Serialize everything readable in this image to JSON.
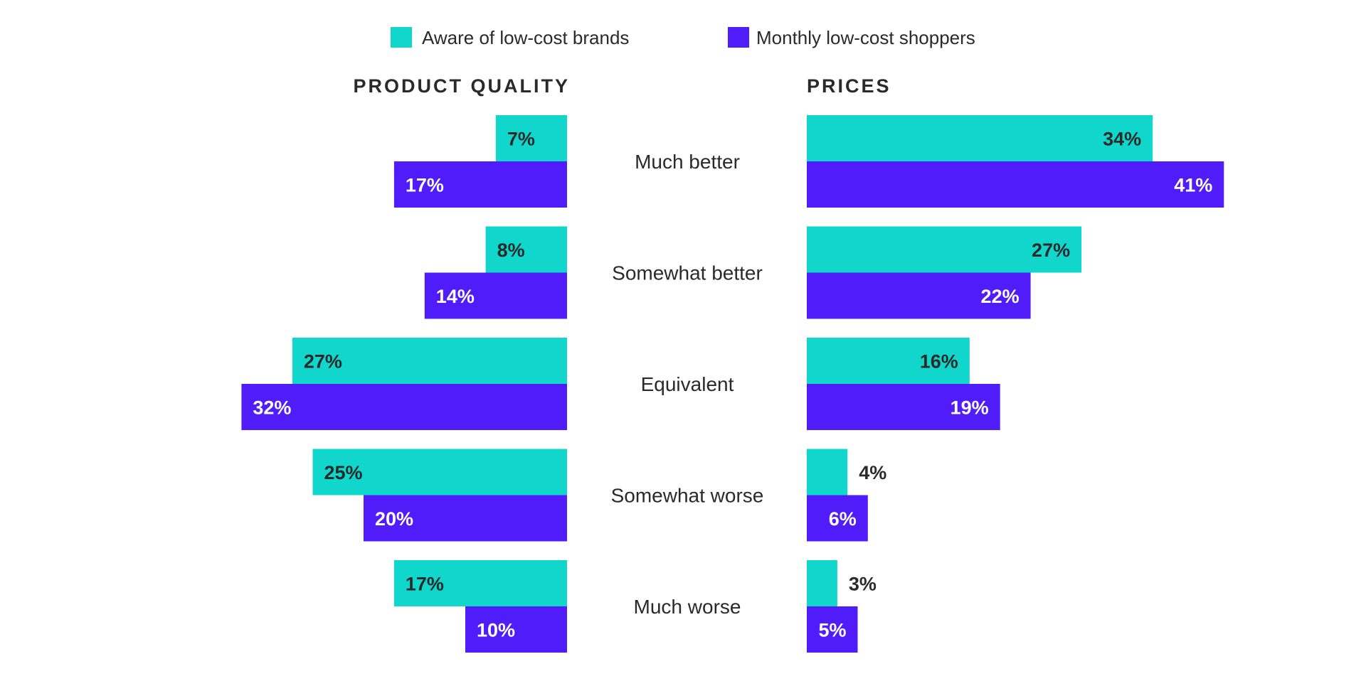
{
  "colors": {
    "aware": "#10d6cc",
    "monthly": "#501cfa",
    "dark_text": "#2a2a2a",
    "light_text": "#ffffff"
  },
  "chart_data": {
    "type": "bar",
    "orientation": "horizontal",
    "categories": [
      "Much better",
      "Somewhat better",
      "Equivalent",
      "Somewhat worse",
      "Much worse"
    ],
    "legend": {
      "position": "top-center",
      "entries": [
        "Aware of low-cost brands",
        "Monthly low-cost shoppers"
      ]
    },
    "value_format": "{v}%",
    "grid": false,
    "panels": [
      {
        "title": "PRODUCT QUALITY",
        "direction": "left",
        "xlim": [
          0,
          40
        ],
        "series": [
          {
            "name": "Aware of low-cost brands",
            "values": [
              7,
              8,
              27,
              25,
              17
            ]
          },
          {
            "name": "Monthly low-cost shoppers",
            "values": [
              17,
              14,
              32,
              20,
              10
            ]
          }
        ]
      },
      {
        "title": "PRICES",
        "direction": "right",
        "xlim": [
          0,
          50
        ],
        "series": [
          {
            "name": "Aware of low-cost brands",
            "values": [
              34,
              27,
              16,
              4,
              3
            ]
          },
          {
            "name": "Monthly low-cost shoppers",
            "values": [
              41,
              22,
              19,
              6,
              5
            ]
          }
        ]
      }
    ]
  }
}
